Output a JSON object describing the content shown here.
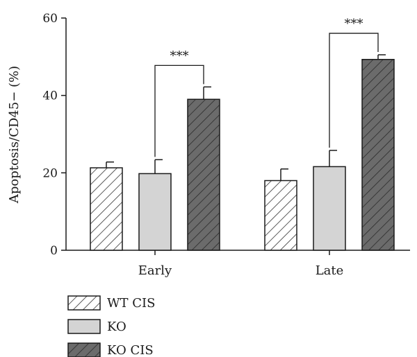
{
  "chart_data": {
    "type": "bar",
    "ylabel": "Apoptosis/CD45− (%)",
    "xlabel": "",
    "ylim": [
      0,
      60
    ],
    "yticks": [
      0,
      20,
      40,
      60
    ],
    "categories": [
      "Early",
      "Late"
    ],
    "series": [
      {
        "name": "WT CIS",
        "values": [
          21.3,
          18.0
        ],
        "errors": [
          1.5,
          3.0
        ],
        "fill": "#ffffff",
        "pattern": "hatch",
        "hatch_color": "#333333"
      },
      {
        "name": "KO",
        "values": [
          19.8,
          21.6
        ],
        "errors": [
          3.6,
          4.2
        ],
        "fill": "#d4d4d4",
        "pattern": "none",
        "hatch_color": ""
      },
      {
        "name": "KO CIS",
        "values": [
          39.0,
          49.3
        ],
        "errors": [
          3.2,
          1.2
        ],
        "fill": "#6b6b6b",
        "pattern": "hatch",
        "hatch_color": "#2a2a2a"
      }
    ],
    "significance": [
      {
        "category": "Early",
        "from_series": 1,
        "to_series": 2,
        "label": "***"
      },
      {
        "category": "Late",
        "from_series": 1,
        "to_series": 2,
        "label": "***"
      }
    ],
    "legend_position": "bottom-left"
  }
}
